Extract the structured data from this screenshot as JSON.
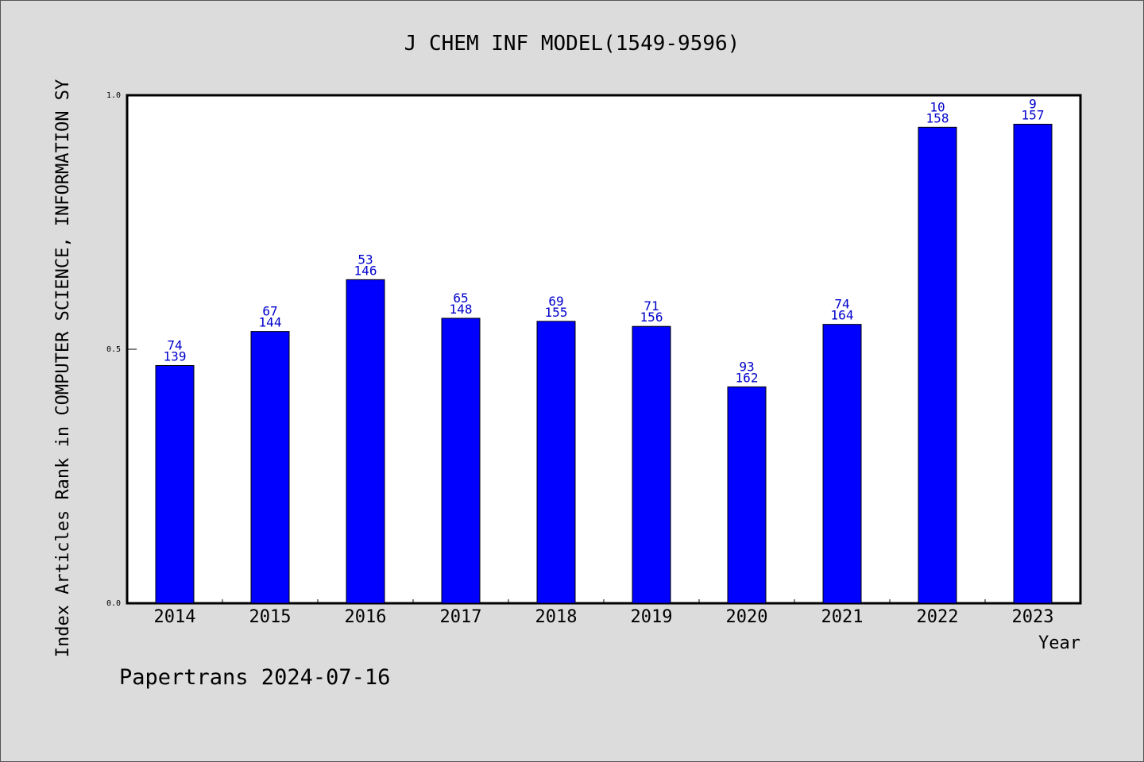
{
  "chart_data": {
    "type": "bar",
    "title": "J CHEM INF MODEL(1549-9596)",
    "xlabel": "Year",
    "ylabel": "Index Articles Rank in COMPUTER SCIENCE, INFORMATION SY",
    "ylim": [
      0.0,
      1.0
    ],
    "yticks": [
      "0.0",
      "0.5",
      "1.0"
    ],
    "grid": false,
    "categories": [
      "2014",
      "2015",
      "2016",
      "2017",
      "2018",
      "2019",
      "2020",
      "2021",
      "2022",
      "2023"
    ],
    "values": [
      0.468,
      0.535,
      0.637,
      0.561,
      0.555,
      0.545,
      0.426,
      0.549,
      0.937,
      0.943
    ],
    "rank": [
      "74",
      "67",
      "53",
      "65",
      "69",
      "71",
      "93",
      "74",
      "10",
      "9"
    ],
    "total": [
      "139",
      "144",
      "146",
      "148",
      "155",
      "156",
      "162",
      "164",
      "158",
      "157"
    ],
    "bar_color": "#0000ff",
    "label_color": "#0000cc"
  },
  "footer": "Papertrans 2024-07-16",
  "colors": {
    "background": "#dcdcdc",
    "plot_background": "#ffffff"
  }
}
